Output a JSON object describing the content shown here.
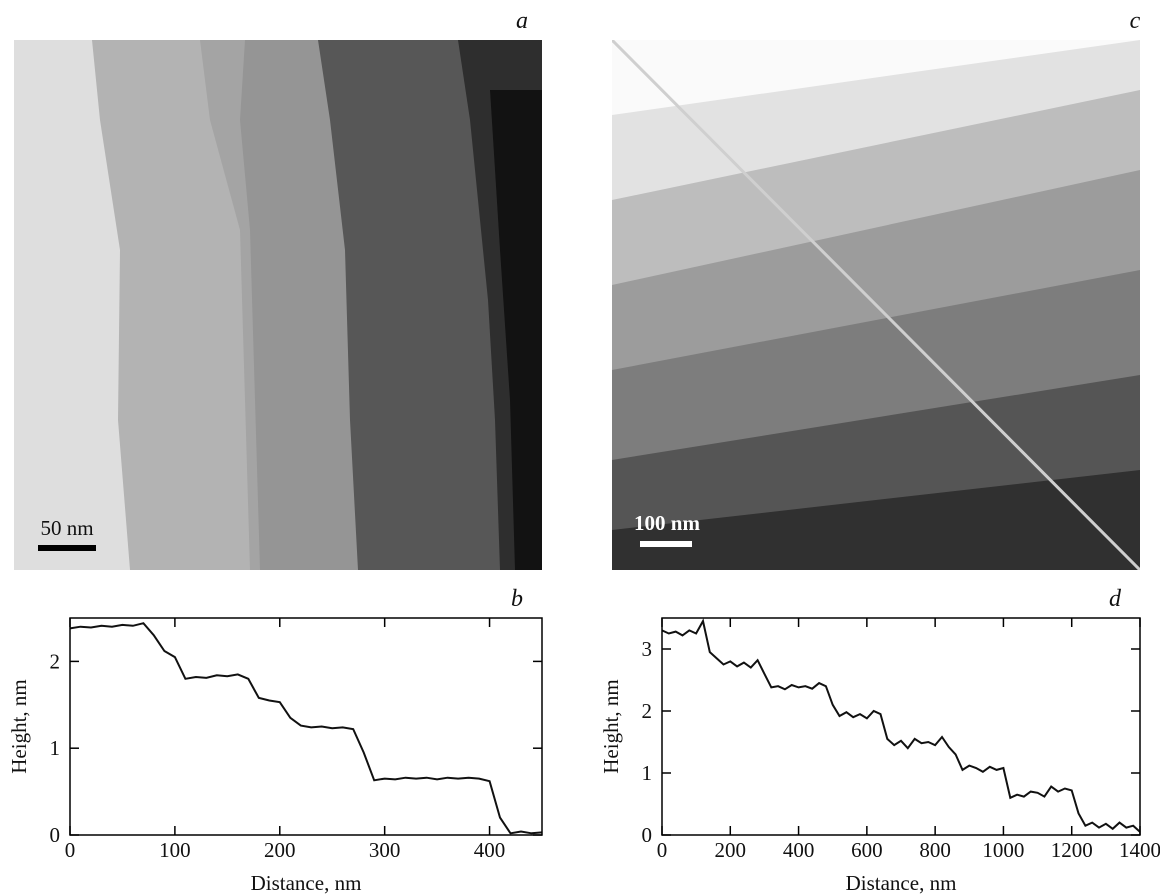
{
  "panels": {
    "a": {
      "letter": "a",
      "scale_bar": "50 nm"
    },
    "c": {
      "letter": "c",
      "scale_bar": "100 nm"
    }
  },
  "chart_data": [
    {
      "type": "line",
      "panel": "b",
      "xlabel": "Distance, nm",
      "ylabel": "Height, nm",
      "color": "#111111",
      "x": [
        0,
        10,
        20,
        30,
        40,
        50,
        60,
        70,
        80,
        90,
        100,
        110,
        120,
        130,
        140,
        150,
        160,
        170,
        180,
        190,
        200,
        210,
        220,
        230,
        240,
        250,
        260,
        270,
        280,
        290,
        300,
        310,
        320,
        330,
        340,
        350,
        360,
        370,
        380,
        390,
        400,
        410,
        420,
        430,
        440,
        450
      ],
      "values": [
        2.38,
        2.4,
        2.39,
        2.41,
        2.4,
        2.42,
        2.41,
        2.44,
        2.3,
        2.12,
        2.05,
        1.8,
        1.82,
        1.81,
        1.84,
        1.83,
        1.85,
        1.8,
        1.58,
        1.55,
        1.53,
        1.35,
        1.26,
        1.24,
        1.25,
        1.23,
        1.24,
        1.22,
        0.95,
        0.63,
        0.65,
        0.64,
        0.66,
        0.65,
        0.66,
        0.64,
        0.66,
        0.65,
        0.66,
        0.65,
        0.62,
        0.2,
        0.02,
        0.04,
        0.02,
        0.03
      ],
      "xlim": [
        0,
        450
      ],
      "ylim": [
        0,
        2.5
      ],
      "xticks": [
        0,
        100,
        200,
        300,
        400
      ],
      "yticks": [
        0,
        1,
        2
      ]
    },
    {
      "type": "line",
      "panel": "d",
      "xlabel": "Distance, nm",
      "ylabel": "Height, nm",
      "color": "#111111",
      "x": [
        0,
        20,
        40,
        60,
        80,
        100,
        120,
        140,
        160,
        180,
        200,
        220,
        240,
        260,
        280,
        300,
        320,
        340,
        360,
        380,
        400,
        420,
        440,
        460,
        480,
        500,
        520,
        540,
        560,
        580,
        600,
        620,
        640,
        660,
        680,
        700,
        720,
        740,
        760,
        780,
        800,
        820,
        840,
        860,
        880,
        900,
        920,
        940,
        960,
        980,
        1000,
        1020,
        1040,
        1060,
        1080,
        1100,
        1120,
        1140,
        1160,
        1180,
        1200,
        1220,
        1240,
        1260,
        1280,
        1300,
        1320,
        1340,
        1360,
        1380,
        1400
      ],
      "values": [
        3.3,
        3.25,
        3.28,
        3.22,
        3.3,
        3.25,
        3.45,
        2.95,
        2.85,
        2.75,
        2.8,
        2.72,
        2.78,
        2.7,
        2.82,
        2.6,
        2.38,
        2.4,
        2.35,
        2.42,
        2.38,
        2.4,
        2.36,
        2.45,
        2.4,
        2.1,
        1.92,
        1.98,
        1.9,
        1.95,
        1.88,
        2.0,
        1.95,
        1.55,
        1.45,
        1.52,
        1.4,
        1.55,
        1.48,
        1.5,
        1.45,
        1.58,
        1.42,
        1.3,
        1.05,
        1.12,
        1.08,
        1.02,
        1.1,
        1.05,
        1.08,
        0.6,
        0.65,
        0.62,
        0.7,
        0.68,
        0.62,
        0.78,
        0.7,
        0.75,
        0.72,
        0.35,
        0.15,
        0.2,
        0.12,
        0.18,
        0.1,
        0.2,
        0.12,
        0.15,
        0.05
      ],
      "xlim": [
        0,
        1400
      ],
      "ylim": [
        0,
        3.5
      ],
      "xticks": [
        0,
        200,
        400,
        600,
        800,
        1000,
        1200,
        1400
      ],
      "yticks": [
        0,
        1,
        2,
        3
      ]
    }
  ]
}
